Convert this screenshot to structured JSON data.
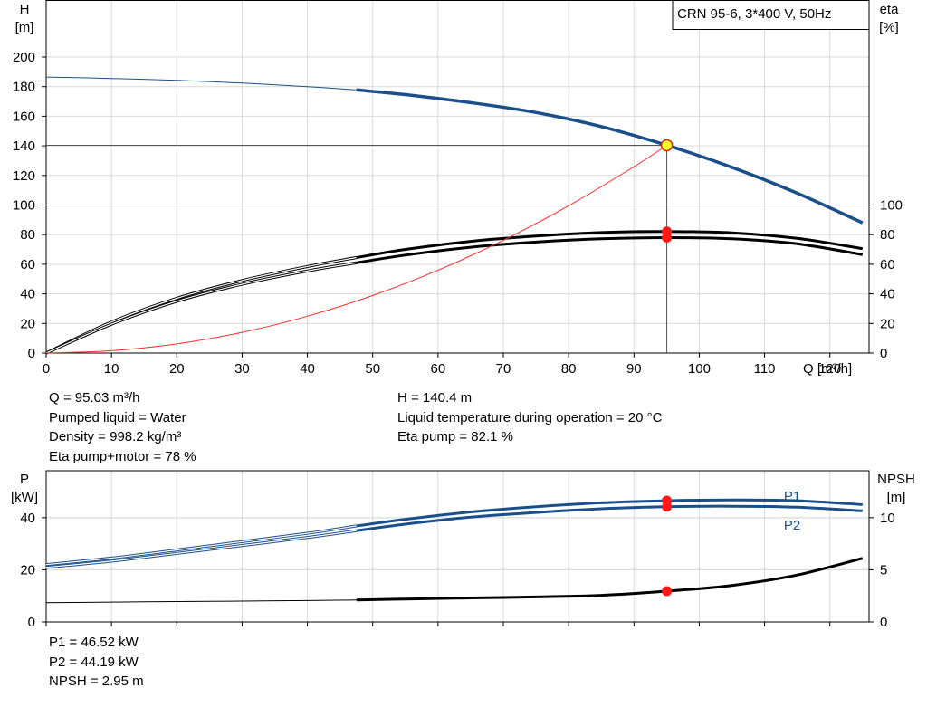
{
  "chart_data": [
    {
      "type": "line",
      "title": "CRN 95-6, 3*400 V, 50Hz",
      "xlabel": "Q [m³/h]",
      "ylabel_left": [
        "H",
        "[m]"
      ],
      "ylabel_right": [
        "eta",
        "[%]"
      ],
      "xlim": [
        0,
        126
      ],
      "xticks": [
        0,
        10,
        20,
        30,
        40,
        50,
        60,
        70,
        80,
        90,
        100,
        110,
        120
      ],
      "ylim": [
        0,
        220
      ],
      "yticks": [
        0,
        20,
        40,
        60,
        80,
        100,
        120,
        140,
        160,
        180,
        200
      ],
      "y2ticks": [
        0,
        20,
        40,
        60,
        80,
        100
      ],
      "grid": true,
      "duty_point": {
        "Q": 95.03,
        "H": 140.4,
        "eta_pump": 82.1,
        "eta_pump_motor": 78
      },
      "series": [
        {
          "id": "H",
          "color": "#1a4f8a",
          "axis": "left",
          "x": [
            0,
            10,
            20,
            30,
            40,
            47.5,
            55,
            65,
            75,
            85,
            95.03,
            105,
            115,
            125
          ],
          "y": [
            186.5,
            185.5,
            184.2,
            182.4,
            180.0,
            177.8,
            174.6,
            169.2,
            162.5,
            153.0,
            140.4,
            125.5,
            108.0,
            88.0
          ],
          "dashed_until": 47.5
        },
        {
          "id": "eta-pump",
          "color": "#000000",
          "axis": "right",
          "x": [
            0,
            10,
            20,
            30,
            40,
            47.5,
            55,
            65,
            75,
            85,
            95.03,
            105,
            115,
            125
          ],
          "y": [
            0,
            21,
            37,
            49,
            58.5,
            64.5,
            70,
            75.5,
            79,
            81.4,
            82.1,
            81.2,
            77.5,
            70.5
          ],
          "dashed_until": 47.5
        },
        {
          "id": "eta-pump-motor",
          "color": "#000000",
          "axis": "right",
          "x": [
            0,
            10,
            20,
            30,
            40,
            47.5,
            55,
            65,
            75,
            85,
            95.03,
            105,
            115,
            125
          ],
          "y": [
            0,
            19.5,
            35,
            46.5,
            55.5,
            61,
            66.2,
            71.5,
            75,
            77.2,
            78,
            77.2,
            73.8,
            66.5
          ],
          "dashed_until": 47.5
        },
        {
          "id": "system-curve",
          "color": "#ff2a2a",
          "axis": "left",
          "x": [
            0,
            10,
            20,
            30,
            40,
            50,
            60,
            70,
            80,
            90,
            95.03
          ],
          "y": [
            0,
            1.6,
            6.2,
            14.0,
            24.9,
            38.9,
            56.0,
            76.2,
            99.5,
            125.9,
            140.4
          ]
        }
      ]
    },
    {
      "type": "line",
      "ylabel_left": [
        "P",
        "[kW]"
      ],
      "ylabel_right": [
        "NPSH",
        "[m]"
      ],
      "xlim": [
        0,
        126
      ],
      "ylim": [
        0,
        58
      ],
      "yticks": [
        0,
        20,
        40
      ],
      "y2lim": [
        0,
        14.5
      ],
      "y2ticks": [
        0,
        5,
        10
      ],
      "grid": true,
      "series": [
        {
          "id": "P1",
          "name": "P1",
          "color": "#1a4f8a",
          "axis": "left",
          "x": [
            0,
            10,
            20,
            30,
            40,
            47.5,
            55,
            65,
            75,
            85,
            95.03,
            105,
            115,
            125
          ],
          "y": [
            22.0,
            24.5,
            27.6,
            30.8,
            34.0,
            36.8,
            39.4,
            42.2,
            44.2,
            45.7,
            46.52,
            46.8,
            46.5,
            45.0
          ],
          "dashed_until": 47.5
        },
        {
          "id": "P2",
          "name": "P2",
          "color": "#1a4f8a",
          "axis": "left",
          "x": [
            0,
            10,
            20,
            30,
            40,
            47.5,
            55,
            65,
            75,
            85,
            95.03,
            105,
            115,
            125
          ],
          "y": [
            20.9,
            23.3,
            26.3,
            29.3,
            32.4,
            35.0,
            37.5,
            40.2,
            42.0,
            43.4,
            44.19,
            44.4,
            44.0,
            42.6
          ],
          "dashed_until": 47.5
        },
        {
          "id": "NPSH",
          "color": "#000000",
          "axis": "right",
          "x": [
            0,
            10,
            20,
            30,
            40,
            47.5,
            55,
            65,
            75,
            85,
            95.03,
            105,
            115,
            125
          ],
          "y": [
            1.85,
            1.9,
            1.95,
            2.0,
            2.05,
            2.1,
            2.2,
            2.3,
            2.4,
            2.55,
            2.95,
            3.5,
            4.5,
            6.1
          ],
          "dashed_until": 47.5
        }
      ]
    }
  ],
  "info_upper_left": [
    "Q = 95.03 m³/h",
    "Pumped liquid = Water",
    "Density = 998.2 kg/m³",
    "Eta pump+motor = 78 %"
  ],
  "info_upper_right": [
    "H = 140.4 m",
    "Liquid temperature during operation = 20 °C",
    "Eta pump = 82.1 %"
  ],
  "info_lower": [
    "P1 = 46.52 kW",
    "P2 = 44.19 kW",
    "NPSH = 2.95 m"
  ]
}
